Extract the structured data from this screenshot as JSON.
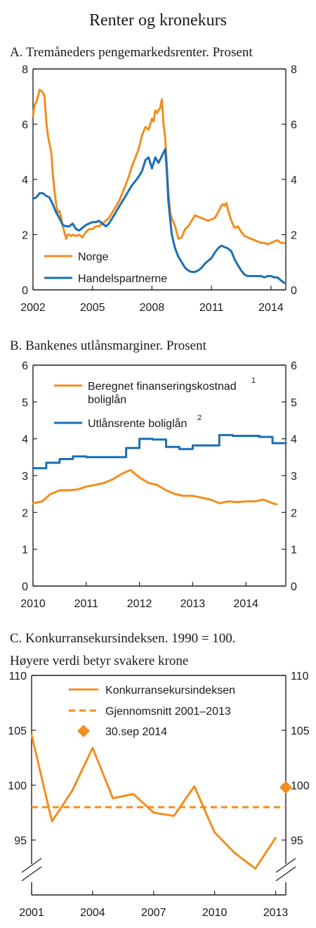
{
  "page_title": "Renter og kronekurs",
  "colors": {
    "orange": "#f28e1e",
    "blue": "#1b6fb5",
    "axis": "#222222"
  },
  "chart_data": [
    {
      "id": "A",
      "type": "line",
      "title": "A. Tremåneders pengemarkedsrenter. Prosent",
      "ylim": [
        0,
        8
      ],
      "yticks": [
        0,
        2,
        4,
        6,
        8
      ],
      "xlim": [
        2002.0,
        2014.75
      ],
      "xticks": [
        2002,
        2005,
        2008,
        2011,
        2014
      ],
      "legend_position": "bottom-left",
      "series": [
        {
          "name": "Norge",
          "color": "#f28e1e",
          "x": [
            2002.0,
            2002.08,
            2002.17,
            2002.25,
            2002.33,
            2002.42,
            2002.5,
            2002.58,
            2002.67,
            2002.75,
            2002.83,
            2002.92,
            2003.0,
            2003.08,
            2003.17,
            2003.25,
            2003.33,
            2003.42,
            2003.5,
            2003.58,
            2003.67,
            2003.75,
            2003.83,
            2003.92,
            2004.0,
            2004.17,
            2004.33,
            2004.5,
            2004.67,
            2004.83,
            2005.0,
            2005.17,
            2005.33,
            2005.5,
            2005.67,
            2005.83,
            2006.0,
            2006.17,
            2006.33,
            2006.5,
            2006.67,
            2006.83,
            2007.0,
            2007.17,
            2007.33,
            2007.5,
            2007.67,
            2007.83,
            2008.0,
            2008.08,
            2008.17,
            2008.25,
            2008.33,
            2008.42,
            2008.5,
            2008.58,
            2008.67,
            2008.75,
            2008.83,
            2008.92,
            2009.0,
            2009.17,
            2009.33,
            2009.5,
            2009.67,
            2009.83,
            2010.0,
            2010.17,
            2010.33,
            2010.5,
            2010.67,
            2010.83,
            2011.0,
            2011.17,
            2011.33,
            2011.5,
            2011.58,
            2011.67,
            2011.75,
            2011.83,
            2012.0,
            2012.17,
            2012.33,
            2012.5,
            2012.67,
            2012.83,
            2013.0,
            2013.17,
            2013.33,
            2013.5,
            2013.67,
            2013.83,
            2014.0,
            2014.17,
            2014.33,
            2014.5,
            2014.67
          ],
          "y": [
            6.3,
            6.7,
            6.8,
            7.0,
            7.25,
            7.2,
            7.15,
            7.0,
            6.1,
            5.6,
            5.3,
            5.0,
            4.2,
            3.6,
            3.1,
            2.8,
            2.85,
            2.6,
            2.3,
            2.1,
            1.85,
            2.0,
            2.0,
            1.95,
            2.0,
            1.95,
            2.0,
            1.9,
            2.1,
            2.2,
            2.2,
            2.3,
            2.3,
            2.4,
            2.5,
            2.6,
            2.8,
            3.0,
            3.2,
            3.5,
            3.8,
            4.1,
            4.5,
            4.8,
            5.1,
            5.6,
            5.9,
            5.8,
            6.2,
            6.1,
            6.5,
            6.4,
            6.5,
            6.6,
            6.9,
            6.0,
            5.5,
            4.5,
            3.5,
            2.8,
            2.6,
            2.3,
            1.85,
            1.9,
            2.2,
            2.3,
            2.5,
            2.7,
            2.65,
            2.6,
            2.55,
            2.5,
            2.55,
            2.6,
            2.8,
            3.05,
            3.1,
            3.05,
            3.15,
            2.9,
            2.5,
            2.25,
            2.3,
            2.1,
            1.95,
            1.9,
            1.85,
            1.8,
            1.75,
            1.7,
            1.7,
            1.65,
            1.7,
            1.75,
            1.8,
            1.7,
            1.7
          ]
        },
        {
          "name": "Handelspartnerne",
          "color": "#1b6fb5",
          "x": [
            2002.0,
            2002.17,
            2002.33,
            2002.5,
            2002.67,
            2002.83,
            2003.0,
            2003.17,
            2003.33,
            2003.5,
            2003.67,
            2003.83,
            2004.0,
            2004.17,
            2004.33,
            2004.5,
            2004.67,
            2004.83,
            2005.0,
            2005.17,
            2005.33,
            2005.5,
            2005.67,
            2005.83,
            2006.0,
            2006.17,
            2006.33,
            2006.5,
            2006.67,
            2006.83,
            2007.0,
            2007.17,
            2007.33,
            2007.5,
            2007.67,
            2007.83,
            2008.0,
            2008.17,
            2008.33,
            2008.5,
            2008.67,
            2008.75,
            2008.83,
            2009.0,
            2009.17,
            2009.33,
            2009.5,
            2009.67,
            2009.83,
            2010.0,
            2010.17,
            2010.33,
            2010.5,
            2010.67,
            2010.83,
            2011.0,
            2011.17,
            2011.33,
            2011.5,
            2011.67,
            2011.83,
            2012.0,
            2012.17,
            2012.33,
            2012.5,
            2012.67,
            2012.83,
            2013.0,
            2013.17,
            2013.33,
            2013.5,
            2013.67,
            2013.83,
            2014.0,
            2014.17,
            2014.33,
            2014.5,
            2014.67
          ],
          "y": [
            3.3,
            3.35,
            3.5,
            3.5,
            3.4,
            3.35,
            3.1,
            2.8,
            2.6,
            2.35,
            2.3,
            2.3,
            2.4,
            2.2,
            2.15,
            2.25,
            2.35,
            2.4,
            2.45,
            2.45,
            2.5,
            2.4,
            2.3,
            2.4,
            2.6,
            2.8,
            3.0,
            3.2,
            3.4,
            3.6,
            3.8,
            3.95,
            4.1,
            4.3,
            4.7,
            4.8,
            4.4,
            4.8,
            4.6,
            4.85,
            5.1,
            4.3,
            3.2,
            2.0,
            1.5,
            1.2,
            1.0,
            0.8,
            0.7,
            0.65,
            0.65,
            0.7,
            0.8,
            0.95,
            1.05,
            1.15,
            1.35,
            1.5,
            1.6,
            1.55,
            1.5,
            1.4,
            1.1,
            0.9,
            0.7,
            0.55,
            0.5,
            0.5,
            0.5,
            0.5,
            0.5,
            0.45,
            0.5,
            0.5,
            0.45,
            0.45,
            0.35,
            0.25
          ]
        }
      ]
    },
    {
      "id": "B",
      "type": "line",
      "title": "B. Bankenes utlånsmarginer. Prosent",
      "ylim": [
        0,
        6
      ],
      "yticks": [
        0,
        1,
        2,
        3,
        4,
        5,
        6
      ],
      "xlim": [
        2010.0,
        2014.75
      ],
      "xticks": [
        2010,
        2011,
        2012,
        2013,
        2014
      ],
      "legend_position": "top-left",
      "series": [
        {
          "name": "Beregnet finanseringskostnad boliglån",
          "legend_lines": [
            "Beregnet finanseringskostnad",
            "boliglån"
          ],
          "footnote": "1",
          "color": "#f28e1e",
          "x": [
            2010.0,
            2010.17,
            2010.33,
            2010.5,
            2010.67,
            2010.83,
            2011.0,
            2011.17,
            2011.33,
            2011.5,
            2011.67,
            2011.83,
            2012.0,
            2012.17,
            2012.33,
            2012.5,
            2012.67,
            2012.83,
            2013.0,
            2013.17,
            2013.33,
            2013.5,
            2013.67,
            2013.83,
            2014.0,
            2014.17,
            2014.33,
            2014.5,
            2014.58
          ],
          "y": [
            2.25,
            2.3,
            2.5,
            2.6,
            2.6,
            2.62,
            2.7,
            2.75,
            2.8,
            2.9,
            3.05,
            3.15,
            2.95,
            2.8,
            2.75,
            2.6,
            2.5,
            2.45,
            2.45,
            2.4,
            2.35,
            2.25,
            2.3,
            2.28,
            2.3,
            2.3,
            2.35,
            2.25,
            2.22
          ]
        },
        {
          "name": "Utlånsrente boliglån",
          "footnote": "2",
          "color": "#1b6fb5",
          "step": true,
          "x": [
            2010.0,
            2010.25,
            2010.5,
            2010.75,
            2011.0,
            2011.25,
            2011.5,
            2011.75,
            2012.0,
            2012.25,
            2012.5,
            2012.75,
            2013.0,
            2013.25,
            2013.5,
            2013.75,
            2014.0,
            2014.25,
            2014.5,
            2014.75
          ],
          "y": [
            3.2,
            3.35,
            3.45,
            3.52,
            3.5,
            3.5,
            3.5,
            3.75,
            4.0,
            3.98,
            3.78,
            3.72,
            3.82,
            3.82,
            4.1,
            4.08,
            4.08,
            4.05,
            3.88,
            3.88
          ]
        }
      ]
    },
    {
      "id": "C",
      "type": "line",
      "title_lines": [
        "C.  Konkurransekursindeksen. 1990 = 100.",
        "Høyere verdi betyr svakere krone"
      ],
      "ylim": [
        90,
        110
      ],
      "yticks": [
        95,
        100,
        105,
        110
      ],
      "axis_break": true,
      "xlim": [
        2001,
        2013.5
      ],
      "xticks": [
        2001,
        2004,
        2007,
        2010,
        2013
      ],
      "legend_position": "top-left",
      "series": [
        {
          "name": "Konkurransekursindeksen",
          "color": "#f28e1e",
          "x": [
            2001,
            2002,
            2003,
            2004,
            2005,
            2006,
            2007,
            2008,
            2009,
            2010,
            2011,
            2012,
            2013
          ],
          "y": [
            104.6,
            96.7,
            99.5,
            103.4,
            98.8,
            99.2,
            97.5,
            97.2,
            99.9,
            95.7,
            93.8,
            92.4,
            95.2
          ]
        },
        {
          "name": "Gjennomsnitt 2001–2013",
          "color": "#f28e1e",
          "dashed": true,
          "x": [
            2001,
            2013.5
          ],
          "y": [
            98.0,
            98.0
          ]
        },
        {
          "name": "30.sep 2014",
          "color": "#f28e1e",
          "marker": "diamond",
          "x": [
            2013.5
          ],
          "y": [
            99.8
          ]
        }
      ]
    }
  ]
}
